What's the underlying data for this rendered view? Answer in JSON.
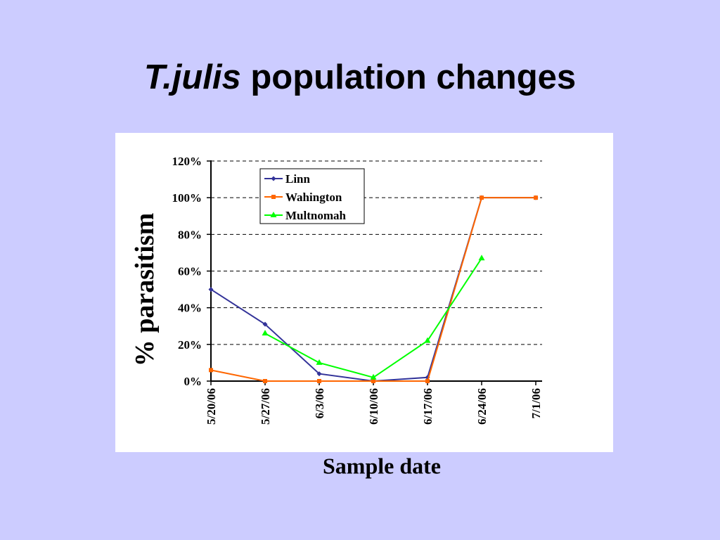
{
  "slide": {
    "title_italic": "T.julis",
    "title_rest": " population changes"
  },
  "chart_data": {
    "type": "line",
    "title": "T.julis population changes",
    "xlabel": "Sample date",
    "ylabel": "% parasitism",
    "categories": [
      "5/20/06",
      "5/27/06",
      "6/3/06",
      "6/10/06",
      "6/17/06",
      "6/24/06",
      "7/1/06"
    ],
    "y_ticks": [
      "0%",
      "20%",
      "40%",
      "60%",
      "80%",
      "100%",
      "120%"
    ],
    "ylim": [
      0,
      120
    ],
    "grid": "horizontal dashed",
    "legend_position": "top-left",
    "series": [
      {
        "name": "Linn",
        "color": "#333399",
        "marker": "diamond",
        "values": [
          50,
          31,
          4,
          0,
          2,
          100,
          100
        ]
      },
      {
        "name": "Wahington",
        "color": "#ff6600",
        "marker": "square",
        "values": [
          6,
          0,
          0,
          0,
          0,
          100,
          100
        ]
      },
      {
        "name": "Multnomah",
        "color": "#00ff00",
        "marker": "triangle",
        "values": [
          null,
          26,
          10,
          2,
          22,
          67,
          null
        ]
      }
    ]
  }
}
